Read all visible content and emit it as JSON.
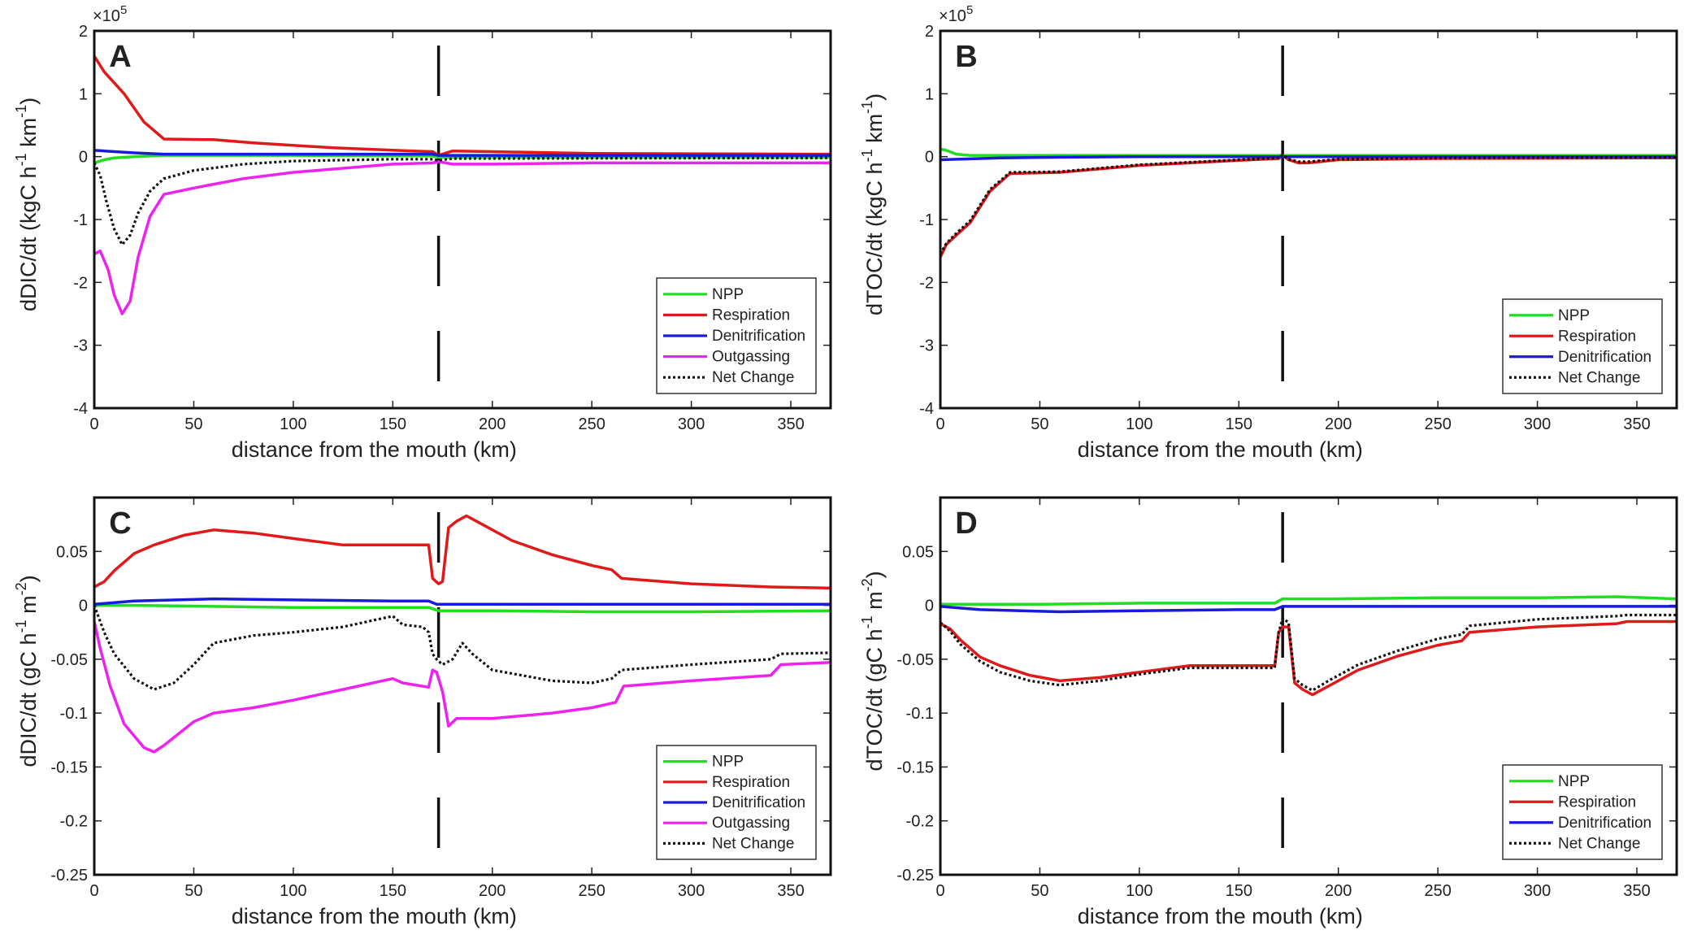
{
  "figure": {
    "xlabel": "distance from the mouth (km)",
    "legend_colors": {
      "NPP": "#22dd22",
      "Respiration": "#e01a1a",
      "Denitrification": "#1a1ad9",
      "Outgassing": "#ee22ee",
      "Net Change": "#111111"
    }
  },
  "chart_data": [
    {
      "type": "line",
      "panel": "A",
      "title": "A",
      "xlabel": "distance from the mouth (km)",
      "ylabel_parts": [
        "dDIC/dt (kgC h",
        "-1",
        " km",
        "-1",
        ")"
      ],
      "exponent_prefix": "×10",
      "exponent_power": "5",
      "xlim": [
        0,
        370
      ],
      "ylim": [
        -4,
        2
      ],
      "xticks": [
        0,
        50,
        100,
        150,
        200,
        250,
        300,
        350
      ],
      "yticks": [
        -4,
        -3,
        -2,
        -1,
        0,
        1,
        2
      ],
      "ytick_labels": [
        "-4",
        "-3",
        "-2",
        "-1",
        "0",
        "1",
        "2"
      ],
      "divider_x": 173,
      "series": [
        {
          "name": "NPP",
          "color": "#22dd22",
          "dash": false,
          "x": [
            0,
            5,
            10,
            20,
            35,
            60,
            100,
            170,
            173,
            370
          ],
          "y": [
            -0.1,
            -0.05,
            -0.02,
            0.0,
            0.02,
            0.02,
            0.02,
            0.01,
            -0.01,
            -0.01
          ]
        },
        {
          "name": "Respiration",
          "color": "#e01a1a",
          "dash": false,
          "x": [
            0,
            5,
            15,
            25,
            35,
            60,
            80,
            120,
            160,
            170,
            173,
            180,
            200,
            250,
            370
          ],
          "y": [
            1.6,
            1.35,
            1.0,
            0.55,
            0.28,
            0.27,
            0.22,
            0.14,
            0.09,
            0.08,
            0.02,
            0.09,
            0.08,
            0.05,
            0.04
          ]
        },
        {
          "name": "Denitrification",
          "color": "#1a1ad9",
          "dash": false,
          "x": [
            0,
            10,
            20,
            35,
            60,
            100,
            170,
            173,
            370
          ],
          "y": [
            0.1,
            0.08,
            0.06,
            0.04,
            0.04,
            0.04,
            0.04,
            0.02,
            0.02
          ]
        },
        {
          "name": "Outgassing",
          "color": "#ee22ee",
          "dash": false,
          "x": [
            0,
            3,
            7,
            10,
            14,
            18,
            22,
            28,
            35,
            50,
            75,
            100,
            150,
            170,
            173,
            180,
            200,
            250,
            370
          ],
          "y": [
            -1.55,
            -1.5,
            -1.8,
            -2.2,
            -2.5,
            -2.3,
            -1.6,
            -0.95,
            -0.6,
            -0.5,
            -0.35,
            -0.25,
            -0.12,
            -0.1,
            -0.08,
            -0.12,
            -0.12,
            -0.1,
            -0.1
          ]
        },
        {
          "name": "Net Change",
          "color": "#111111",
          "dash": true,
          "x": [
            0,
            3,
            6,
            10,
            14,
            18,
            22,
            28,
            35,
            50,
            75,
            100,
            150,
            170,
            173,
            180,
            370
          ],
          "y": [
            -0.1,
            -0.3,
            -0.7,
            -1.15,
            -1.4,
            -1.25,
            -0.9,
            -0.55,
            -0.35,
            -0.22,
            -0.12,
            -0.07,
            -0.04,
            -0.04,
            -0.06,
            -0.03,
            -0.02
          ]
        }
      ]
    },
    {
      "type": "line",
      "panel": "B",
      "title": "B",
      "xlabel": "distance from the mouth (km)",
      "ylabel_parts": [
        "dTOC/dt (kgC h",
        "-1",
        " km",
        "-1",
        ")"
      ],
      "exponent_prefix": "×10",
      "exponent_power": "5",
      "xlim": [
        0,
        370
      ],
      "ylim": [
        -4,
        2
      ],
      "xticks": [
        0,
        50,
        100,
        150,
        200,
        250,
        300,
        350
      ],
      "yticks": [
        -4,
        -3,
        -2,
        -1,
        0,
        1,
        2
      ],
      "ytick_labels": [
        "-4",
        "-3",
        "-2",
        "-1",
        "0",
        "1",
        "2"
      ],
      "divider_x": 172,
      "series": [
        {
          "name": "NPP",
          "color": "#22dd22",
          "dash": false,
          "x": [
            0,
            3,
            8,
            15,
            30,
            100,
            370
          ],
          "y": [
            0.12,
            0.1,
            0.04,
            0.02,
            0.02,
            0.02,
            0.02
          ]
        },
        {
          "name": "Respiration",
          "color": "#e01a1a",
          "dash": false,
          "x": [
            0,
            3,
            8,
            15,
            25,
            35,
            60,
            100,
            150,
            170,
            172,
            175,
            180,
            185,
            200,
            250,
            370
          ],
          "y": [
            -1.6,
            -1.4,
            -1.25,
            -1.05,
            -0.55,
            -0.27,
            -0.25,
            -0.14,
            -0.06,
            -0.03,
            0.02,
            -0.05,
            -0.1,
            -0.1,
            -0.05,
            -0.03,
            -0.02
          ]
        },
        {
          "name": "Denitrification",
          "color": "#1a1ad9",
          "dash": false,
          "x": [
            0,
            10,
            30,
            60,
            100,
            370
          ],
          "y": [
            -0.05,
            -0.04,
            -0.02,
            -0.01,
            0.0,
            0.0
          ]
        },
        {
          "name": "Net Change",
          "color": "#111111",
          "dash": true,
          "x": [
            0,
            3,
            8,
            15,
            25,
            35,
            60,
            100,
            150,
            170,
            172,
            175,
            180,
            185,
            200,
            250,
            370
          ],
          "y": [
            -1.55,
            -1.38,
            -1.22,
            -1.02,
            -0.52,
            -0.25,
            -0.24,
            -0.13,
            -0.05,
            -0.02,
            0.03,
            -0.04,
            -0.08,
            -0.08,
            -0.04,
            -0.02,
            -0.01
          ]
        }
      ]
    },
    {
      "type": "line",
      "panel": "C",
      "title": "C",
      "xlabel": "distance from the mouth (km)",
      "ylabel_parts": [
        "dDIC/dt (gC h",
        "-1",
        " m",
        "-2",
        ")"
      ],
      "exponent_prefix": "",
      "exponent_power": "",
      "xlim": [
        0,
        370
      ],
      "ylim": [
        -0.25,
        0.1
      ],
      "xticks": [
        0,
        50,
        100,
        150,
        200,
        250,
        300,
        350
      ],
      "yticks": [
        -0.25,
        -0.2,
        -0.15,
        -0.1,
        -0.05,
        0,
        0.05
      ],
      "ytick_labels": [
        "-0.25",
        "-0.2",
        "-0.15",
        "-0.1",
        "-0.05",
        "0",
        "0.05"
      ],
      "divider_x": 173,
      "series": [
        {
          "name": "NPP",
          "color": "#22dd22",
          "dash": false,
          "x": [
            0,
            20,
            60,
            100,
            150,
            168,
            173,
            200,
            250,
            300,
            370
          ],
          "y": [
            0.0,
            0.0,
            -0.001,
            -0.002,
            -0.002,
            -0.002,
            -0.005,
            -0.005,
            -0.006,
            -0.006,
            -0.005
          ]
        },
        {
          "name": "Respiration",
          "color": "#e01a1a",
          "dash": false,
          "x": [
            0,
            5,
            10,
            20,
            30,
            45,
            60,
            80,
            100,
            125,
            150,
            168,
            170,
            173,
            175,
            178,
            182,
            187,
            195,
            210,
            230,
            250,
            260,
            265,
            300,
            340,
            370
          ],
          "y": [
            0.017,
            0.022,
            0.032,
            0.048,
            0.056,
            0.065,
            0.07,
            0.067,
            0.062,
            0.056,
            0.056,
            0.056,
            0.025,
            0.02,
            0.022,
            0.072,
            0.078,
            0.083,
            0.075,
            0.06,
            0.047,
            0.037,
            0.033,
            0.025,
            0.02,
            0.017,
            0.016
          ]
        },
        {
          "name": "Denitrification",
          "color": "#1a1ad9",
          "dash": false,
          "x": [
            0,
            20,
            60,
            100,
            150,
            168,
            172,
            370
          ],
          "y": [
            0.001,
            0.004,
            0.006,
            0.005,
            0.004,
            0.004,
            0.001,
            0.001
          ]
        },
        {
          "name": "Outgassing",
          "color": "#ee22ee",
          "dash": false,
          "x": [
            0,
            3,
            8,
            15,
            25,
            30,
            35,
            50,
            60,
            80,
            100,
            125,
            150,
            155,
            168,
            170,
            172,
            175,
            178,
            182,
            190,
            200,
            230,
            250,
            262,
            266,
            300,
            340,
            345,
            370
          ],
          "y": [
            -0.015,
            -0.04,
            -0.075,
            -0.11,
            -0.132,
            -0.136,
            -0.13,
            -0.108,
            -0.1,
            -0.095,
            -0.088,
            -0.078,
            -0.068,
            -0.072,
            -0.076,
            -0.06,
            -0.062,
            -0.08,
            -0.112,
            -0.105,
            -0.105,
            -0.105,
            -0.1,
            -0.095,
            -0.09,
            -0.075,
            -0.07,
            -0.065,
            -0.055,
            -0.053
          ]
        },
        {
          "name": "Net Change",
          "color": "#111111",
          "dash": true,
          "x": [
            0,
            5,
            10,
            20,
            30,
            40,
            50,
            60,
            80,
            100,
            125,
            150,
            155,
            165,
            168,
            170,
            172,
            175,
            180,
            185,
            190,
            200,
            230,
            250,
            260,
            265,
            300,
            340,
            345,
            370
          ],
          "y": [
            0.0,
            -0.025,
            -0.045,
            -0.068,
            -0.078,
            -0.072,
            -0.055,
            -0.035,
            -0.028,
            -0.025,
            -0.02,
            -0.01,
            -0.018,
            -0.02,
            -0.025,
            -0.045,
            -0.05,
            -0.055,
            -0.05,
            -0.035,
            -0.045,
            -0.06,
            -0.07,
            -0.072,
            -0.068,
            -0.06,
            -0.055,
            -0.05,
            -0.045,
            -0.044
          ]
        }
      ]
    },
    {
      "type": "line",
      "panel": "D",
      "title": "D",
      "xlabel": "distance from the mouth (km)",
      "ylabel_parts": [
        "dTOC/dt (gC h",
        "-1",
        " m",
        "-2",
        ")"
      ],
      "exponent_prefix": "",
      "exponent_power": "",
      "xlim": [
        0,
        370
      ],
      "ylim": [
        -0.25,
        0.1
      ],
      "xticks": [
        0,
        50,
        100,
        150,
        200,
        250,
        300,
        350
      ],
      "yticks": [
        -0.25,
        -0.2,
        -0.15,
        -0.1,
        -0.05,
        0,
        0.05
      ],
      "ytick_labels": [
        "-0.25",
        "-0.2",
        "-0.15",
        "-0.1",
        "-0.05",
        "0",
        "0.05"
      ],
      "divider_x": 172,
      "series": [
        {
          "name": "NPP",
          "color": "#22dd22",
          "dash": false,
          "x": [
            0,
            50,
            100,
            150,
            168,
            172,
            200,
            250,
            300,
            340,
            370
          ],
          "y": [
            0.001,
            0.001,
            0.002,
            0.002,
            0.002,
            0.006,
            0.006,
            0.007,
            0.007,
            0.008,
            0.006
          ]
        },
        {
          "name": "Respiration",
          "color": "#e01a1a",
          "dash": false,
          "x": [
            0,
            5,
            10,
            20,
            30,
            45,
            60,
            80,
            100,
            125,
            150,
            168,
            170,
            172,
            175,
            178,
            182,
            187,
            195,
            210,
            230,
            250,
            262,
            266,
            300,
            340,
            345,
            370
          ],
          "y": [
            -0.017,
            -0.022,
            -0.032,
            -0.048,
            -0.056,
            -0.065,
            -0.07,
            -0.067,
            -0.062,
            -0.056,
            -0.056,
            -0.056,
            -0.025,
            -0.02,
            -0.02,
            -0.072,
            -0.078,
            -0.083,
            -0.075,
            -0.06,
            -0.047,
            -0.037,
            -0.033,
            -0.025,
            -0.02,
            -0.017,
            -0.015,
            -0.015
          ]
        },
        {
          "name": "Denitrification",
          "color": "#1a1ad9",
          "dash": false,
          "x": [
            0,
            20,
            60,
            100,
            150,
            168,
            172,
            370
          ],
          "y": [
            -0.001,
            -0.004,
            -0.006,
            -0.005,
            -0.004,
            -0.004,
            -0.001,
            -0.001
          ]
        },
        {
          "name": "Net Change",
          "color": "#111111",
          "dash": true,
          "x": [
            0,
            5,
            10,
            20,
            30,
            45,
            60,
            80,
            100,
            125,
            150,
            168,
            170,
            172,
            175,
            178,
            182,
            187,
            195,
            210,
            230,
            250,
            262,
            266,
            300,
            340,
            345,
            370
          ],
          "y": [
            -0.016,
            -0.024,
            -0.036,
            -0.052,
            -0.062,
            -0.07,
            -0.074,
            -0.07,
            -0.064,
            -0.058,
            -0.058,
            -0.058,
            -0.025,
            -0.012,
            -0.016,
            -0.068,
            -0.074,
            -0.079,
            -0.07,
            -0.055,
            -0.042,
            -0.031,
            -0.027,
            -0.019,
            -0.013,
            -0.01,
            -0.009,
            -0.009
          ]
        }
      ]
    }
  ]
}
